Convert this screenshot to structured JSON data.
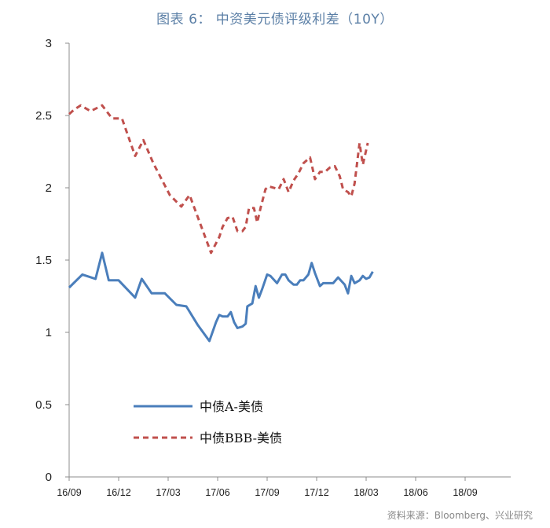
{
  "title": "图表 6： 中资美元债评级利差（10Y）",
  "source": "资料来源：Bloomberg、兴业研究",
  "chart_data": {
    "type": "line",
    "title": "图表 6： 中资美元债评级利差（10Y）",
    "xlabel": "",
    "ylabel": "",
    "ylim": [
      0,
      3
    ],
    "yticks": [
      "0",
      "0.5",
      "1",
      "1.5",
      "2",
      "2.5",
      "3"
    ],
    "xticks": [
      "16/09",
      "16/12",
      "17/03",
      "17/06",
      "17/09",
      "17/12",
      "18/03",
      "18/06",
      "18/09"
    ],
    "xrange_months": [
      0,
      26
    ],
    "legend_position": "lower-left",
    "series": [
      {
        "name": "中债A-美债",
        "color": "#4a7ebb",
        "style": "solid",
        "points": [
          [
            0,
            1.31
          ],
          [
            0.8,
            1.4
          ],
          [
            1.6,
            1.37
          ],
          [
            2.0,
            1.55
          ],
          [
            2.4,
            1.36
          ],
          [
            3.0,
            1.36
          ],
          [
            4.0,
            1.24
          ],
          [
            4.4,
            1.37
          ],
          [
            5.0,
            1.27
          ],
          [
            5.8,
            1.27
          ],
          [
            6.5,
            1.19
          ],
          [
            7.1,
            1.18
          ],
          [
            7.8,
            1.05
          ],
          [
            8.5,
            0.94
          ],
          [
            8.9,
            1.07
          ],
          [
            9.1,
            1.12
          ],
          [
            9.3,
            1.11
          ],
          [
            9.6,
            1.11
          ],
          [
            9.8,
            1.14
          ],
          [
            10.0,
            1.07
          ],
          [
            10.2,
            1.03
          ],
          [
            10.5,
            1.04
          ],
          [
            10.7,
            1.06
          ],
          [
            10.8,
            1.18
          ],
          [
            11.1,
            1.2
          ],
          [
            11.3,
            1.32
          ],
          [
            11.5,
            1.24
          ],
          [
            11.7,
            1.3
          ],
          [
            12.0,
            1.4
          ],
          [
            12.2,
            1.39
          ],
          [
            12.6,
            1.34
          ],
          [
            12.9,
            1.4
          ],
          [
            13.1,
            1.4
          ],
          [
            13.3,
            1.36
          ],
          [
            13.6,
            1.33
          ],
          [
            13.8,
            1.33
          ],
          [
            14.0,
            1.36
          ],
          [
            14.2,
            1.36
          ],
          [
            14.5,
            1.4
          ],
          [
            14.7,
            1.48
          ],
          [
            14.9,
            1.41
          ],
          [
            15.2,
            1.32
          ],
          [
            15.4,
            1.34
          ],
          [
            15.7,
            1.34
          ],
          [
            16.0,
            1.34
          ],
          [
            16.3,
            1.38
          ],
          [
            16.7,
            1.33
          ],
          [
            16.9,
            1.27
          ],
          [
            17.1,
            1.39
          ],
          [
            17.3,
            1.34
          ],
          [
            17.6,
            1.36
          ],
          [
            17.8,
            1.39
          ],
          [
            18.0,
            1.37
          ],
          [
            18.2,
            1.38
          ],
          [
            18.4,
            1.42
          ]
        ]
      },
      {
        "name": "中债BBB-美债",
        "color": "#c0504d",
        "style": "dashed",
        "points": [
          [
            0,
            2.51
          ],
          [
            0.3,
            2.54
          ],
          [
            0.7,
            2.57
          ],
          [
            1.3,
            2.53
          ],
          [
            2.0,
            2.57
          ],
          [
            2.6,
            2.48
          ],
          [
            3.2,
            2.48
          ],
          [
            4.0,
            2.22
          ],
          [
            4.5,
            2.33
          ],
          [
            5.1,
            2.17
          ],
          [
            6.1,
            1.95
          ],
          [
            6.8,
            1.87
          ],
          [
            7.3,
            1.95
          ],
          [
            8.6,
            1.55
          ],
          [
            9.1,
            1.66
          ],
          [
            9.3,
            1.73
          ],
          [
            9.6,
            1.79
          ],
          [
            9.9,
            1.8
          ],
          [
            10.2,
            1.7
          ],
          [
            10.5,
            1.7
          ],
          [
            10.7,
            1.73
          ],
          [
            10.9,
            1.86
          ],
          [
            11.2,
            1.86
          ],
          [
            11.4,
            1.76
          ],
          [
            11.6,
            1.86
          ],
          [
            11.9,
            1.99
          ],
          [
            12.1,
            2.01
          ],
          [
            12.7,
            1.99
          ],
          [
            13.0,
            2.06
          ],
          [
            13.3,
            1.97
          ],
          [
            13.6,
            2.05
          ],
          [
            13.9,
            2.1
          ],
          [
            14.2,
            2.17
          ],
          [
            14.6,
            2.21
          ],
          [
            14.9,
            2.06
          ],
          [
            15.2,
            2.11
          ],
          [
            15.5,
            2.11
          ],
          [
            15.8,
            2.14
          ],
          [
            16.1,
            2.15
          ],
          [
            16.4,
            2.08
          ],
          [
            16.6,
            1.99
          ],
          [
            16.9,
            1.97
          ],
          [
            17.1,
            1.94
          ],
          [
            17.3,
            2.03
          ],
          [
            17.6,
            2.31
          ],
          [
            17.8,
            2.16
          ],
          [
            18.1,
            2.31
          ]
        ]
      }
    ]
  }
}
